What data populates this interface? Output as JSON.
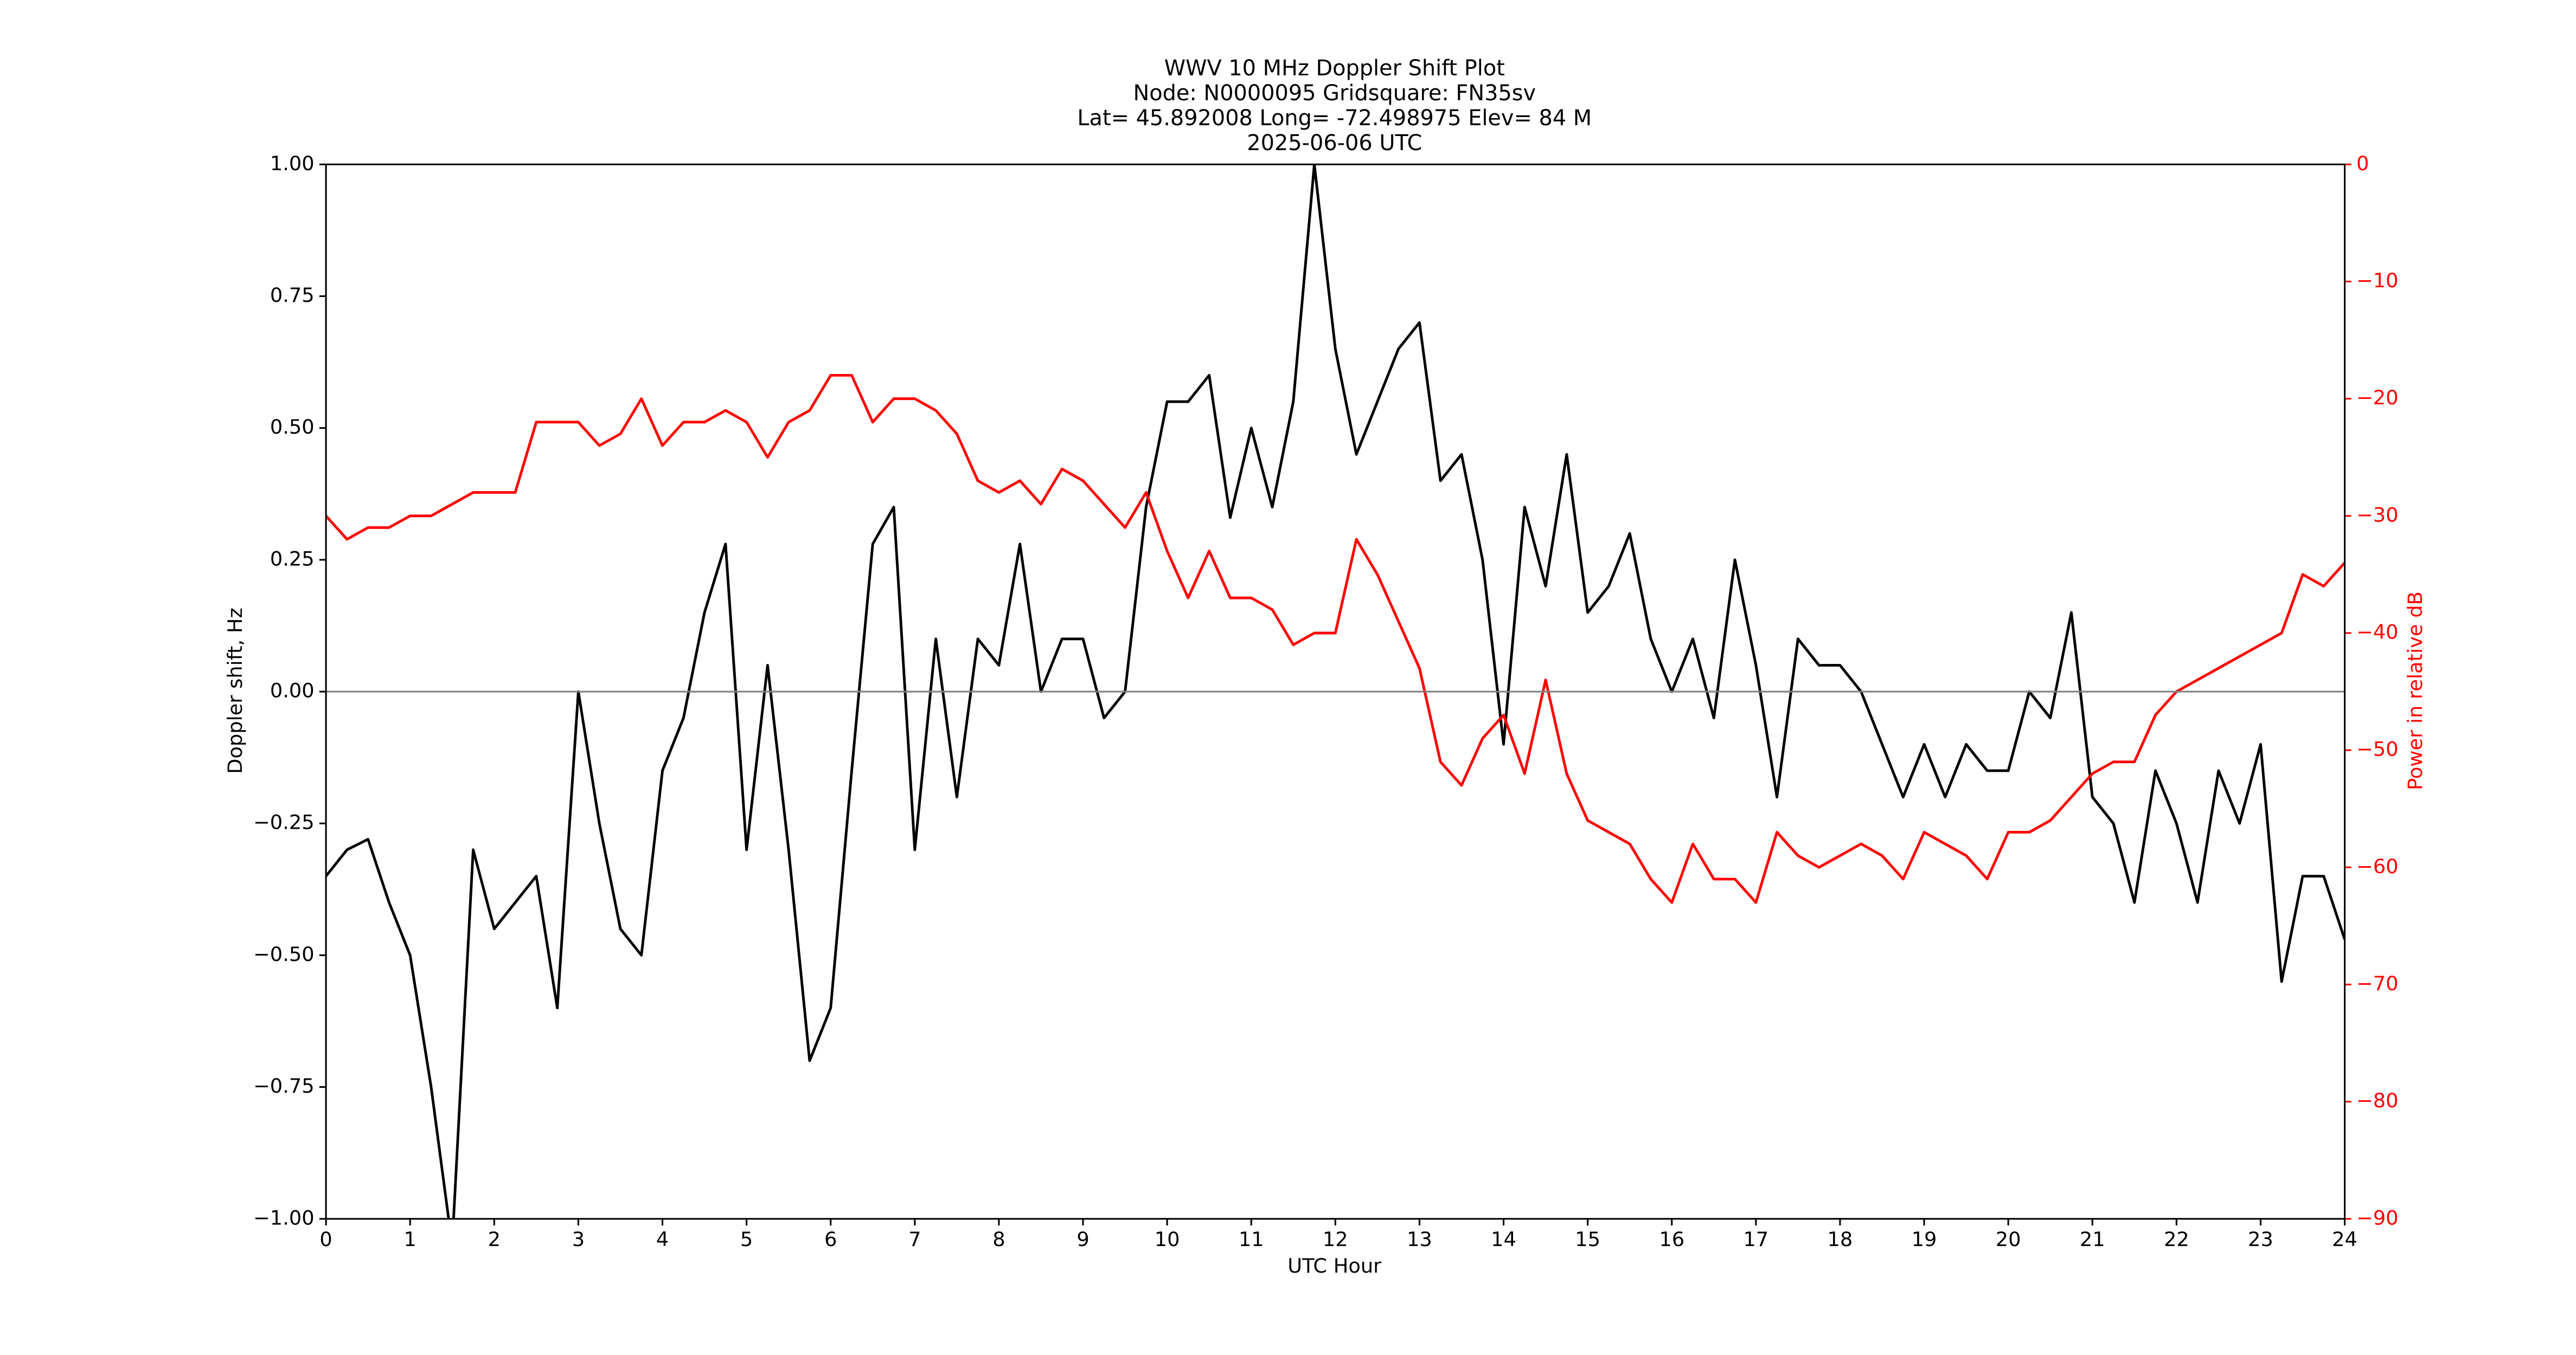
{
  "chart_data": {
    "type": "line",
    "title": [
      "WWV 10 MHz Doppler Shift Plot",
      "Node:  N0000095     Gridsquare:  FN35sv",
      "Lat= 45.892008    Long= -72.498975    Elev= 84 M",
      "2025-06-06  UTC"
    ],
    "xlabel": "UTC Hour",
    "ylabel": "Doppler shift, Hz",
    "y2label": "Power in relative dB",
    "y2color": "#ff0000",
    "xlim": [
      0,
      24
    ],
    "xticks": [
      0,
      1,
      2,
      3,
      4,
      5,
      6,
      7,
      8,
      9,
      10,
      11,
      12,
      13,
      14,
      15,
      16,
      17,
      18,
      19,
      20,
      21,
      22,
      23,
      24
    ],
    "ylim": [
      -1,
      1
    ],
    "yticks": [
      {
        "value": -1,
        "label": "−1.00"
      },
      {
        "value": -0.75,
        "label": "−0.75"
      },
      {
        "value": -0.5,
        "label": "−0.50"
      },
      {
        "value": -0.25,
        "label": "−0.25"
      },
      {
        "value": 0,
        "label": "0.00"
      },
      {
        "value": 0.25,
        "label": "0.25"
      },
      {
        "value": 0.5,
        "label": "0.50"
      },
      {
        "value": 0.75,
        "label": "0.75"
      },
      {
        "value": 1,
        "label": "1.00"
      }
    ],
    "y2lim": [
      -90,
      0
    ],
    "y2ticks": [
      {
        "value": -90,
        "label": "−90"
      },
      {
        "value": -80,
        "label": "−80"
      },
      {
        "value": -70,
        "label": "−70"
      },
      {
        "value": -60,
        "label": "−60"
      },
      {
        "value": -50,
        "label": "−50"
      },
      {
        "value": -40,
        "label": "−40"
      },
      {
        "value": -30,
        "label": "−30"
      },
      {
        "value": -20,
        "label": "−20"
      },
      {
        "value": -10,
        "label": "−10"
      },
      0
    ],
    "hline": 0,
    "x": [
      0,
      0.25,
      0.5,
      0.75,
      1,
      1.25,
      1.5,
      1.75,
      2,
      2.25,
      2.5,
      2.75,
      3,
      3.25,
      3.5,
      3.75,
      4,
      4.25,
      4.5,
      4.75,
      5,
      5.25,
      5.5,
      5.75,
      6,
      6.25,
      6.5,
      6.75,
      7,
      7.25,
      7.5,
      7.75,
      8,
      8.25,
      8.5,
      8.75,
      9,
      9.25,
      9.5,
      9.75,
      10,
      10.25,
      10.5,
      10.75,
      11,
      11.25,
      11.5,
      11.75,
      12,
      12.25,
      12.5,
      12.75,
      13,
      13.25,
      13.5,
      13.75,
      14,
      14.25,
      14.5,
      14.75,
      15,
      15.25,
      15.5,
      15.75,
      16,
      16.25,
      16.5,
      16.75,
      17,
      17.25,
      17.5,
      17.75,
      18,
      18.25,
      18.5,
      18.75,
      19,
      19.25,
      19.5,
      19.75,
      20,
      20.25,
      20.5,
      20.75,
      21,
      21.25,
      21.5,
      21.75,
      22,
      22.25,
      22.5,
      22.75,
      23,
      23.25,
      23.5,
      23.75,
      24
    ],
    "series": [
      {
        "name": "Doppler shift",
        "color": "#000000",
        "values": [
          -0.35,
          -0.3,
          -0.28,
          -0.4,
          -0.5,
          -0.75,
          -1.05,
          -0.3,
          -0.45,
          -0.4,
          -0.35,
          -0.6,
          0.0,
          -0.25,
          -0.45,
          -0.5,
          -0.15,
          -0.05,
          0.15,
          0.28,
          -0.3,
          0.05,
          -0.3,
          -0.7,
          -0.6,
          -0.15,
          0.28,
          0.35,
          -0.3,
          0.1,
          -0.2,
          0.1,
          0.05,
          0.28,
          0.0,
          0.1,
          0.1,
          -0.05,
          0.0,
          0.35,
          0.55,
          0.55,
          0.6,
          0.33,
          0.5,
          0.35,
          0.55,
          1.0,
          0.65,
          0.45,
          0.55,
          0.65,
          0.7,
          0.4,
          0.45,
          0.25,
          -0.1,
          0.35,
          0.2,
          0.45,
          0.15,
          0.2,
          0.3,
          0.1,
          0.0,
          0.1,
          -0.05,
          0.25,
          0.05,
          -0.2,
          0.1,
          0.05,
          0.05,
          0.0,
          -0.1,
          -0.2,
          -0.1,
          -0.2,
          -0.1,
          -0.15,
          -0.15,
          0.0,
          -0.05,
          0.15,
          -0.2,
          -0.25,
          -0.4,
          -0.15,
          -0.25,
          -0.4,
          -0.15,
          -0.25,
          -0.1,
          -0.55,
          -0.35,
          -0.35,
          -0.47
        ]
      },
      {
        "name": "Power",
        "color": "#ff0000",
        "axis": "y2",
        "values": [
          -30,
          -32,
          -31,
          -31,
          -30,
          -30,
          -29,
          -28,
          -28,
          -28,
          -22,
          -22,
          -22,
          -24,
          -23,
          -20,
          -24,
          -22,
          -22,
          -21,
          -22,
          -25,
          -22,
          -21,
          -18,
          -18,
          -22,
          -20,
          -20,
          -21,
          -23,
          -27,
          -28,
          -27,
          -29,
          -26,
          -27,
          -29,
          -31,
          -28,
          -33,
          -37,
          -33,
          -37,
          -37,
          -38,
          -41,
          -40,
          -40,
          -32,
          -35,
          -39,
          -43,
          -51,
          -53,
          -49,
          -47,
          -52,
          -44,
          -52,
          -56,
          -57,
          -58,
          -61,
          -63,
          -58,
          -61,
          -61,
          -63,
          -57,
          -59,
          -60,
          -59,
          -58,
          -59,
          -61,
          -57,
          -58,
          -59,
          -61,
          -57,
          -57,
          -56,
          -54,
          -52,
          -51,
          -51,
          -47,
          -45,
          -44,
          -43,
          -42,
          -41,
          -40,
          -35,
          -36,
          -34
        ]
      }
    ]
  }
}
